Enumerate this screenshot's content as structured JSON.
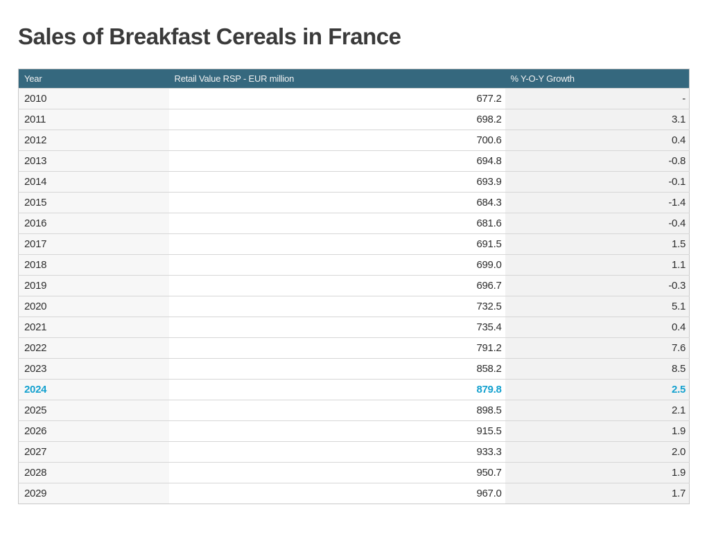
{
  "page": {
    "title": "Sales of Breakfast Cereals in France"
  },
  "chart_data": {
    "type": "table",
    "title": "Sales of Breakfast Cereals in France",
    "columns": [
      "Year",
      "Retail Value RSP - EUR million",
      "% Y-O-Y Growth"
    ],
    "highlight_year": "2024",
    "rows": [
      {
        "year": "2010",
        "value": "677.2",
        "growth": "-",
        "highlight": false
      },
      {
        "year": "2011",
        "value": "698.2",
        "growth": "3.1",
        "highlight": false
      },
      {
        "year": "2012",
        "value": "700.6",
        "growth": "0.4",
        "highlight": false
      },
      {
        "year": "2013",
        "value": "694.8",
        "growth": "-0.8",
        "highlight": false
      },
      {
        "year": "2014",
        "value": "693.9",
        "growth": "-0.1",
        "highlight": false
      },
      {
        "year": "2015",
        "value": "684.3",
        "growth": "-1.4",
        "highlight": false
      },
      {
        "year": "2016",
        "value": "681.6",
        "growth": "-0.4",
        "highlight": false
      },
      {
        "year": "2017",
        "value": "691.5",
        "growth": "1.5",
        "highlight": false
      },
      {
        "year": "2018",
        "value": "699.0",
        "growth": "1.1",
        "highlight": false
      },
      {
        "year": "2019",
        "value": "696.7",
        "growth": "-0.3",
        "highlight": false
      },
      {
        "year": "2020",
        "value": "732.5",
        "growth": "5.1",
        "highlight": false
      },
      {
        "year": "2021",
        "value": "735.4",
        "growth": "0.4",
        "highlight": false
      },
      {
        "year": "2022",
        "value": "791.2",
        "growth": "7.6",
        "highlight": false
      },
      {
        "year": "2023",
        "value": "858.2",
        "growth": "8.5",
        "highlight": false
      },
      {
        "year": "2024",
        "value": "879.8",
        "growth": "2.5",
        "highlight": true
      },
      {
        "year": "2025",
        "value": "898.5",
        "growth": "2.1",
        "highlight": false
      },
      {
        "year": "2026",
        "value": "915.5",
        "growth": "1.9",
        "highlight": false
      },
      {
        "year": "2027",
        "value": "933.3",
        "growth": "2.0",
        "highlight": false
      },
      {
        "year": "2028",
        "value": "950.7",
        "growth": "1.9",
        "highlight": false
      },
      {
        "year": "2029",
        "value": "967.0",
        "growth": "1.7",
        "highlight": false
      }
    ]
  },
  "colors": {
    "header_bg": "#35687e",
    "header_text": "#f2f2f2",
    "highlight": "#14a1cf",
    "row_text": "#2d2d2d",
    "year_col_bg": "#f7f7f7",
    "growth_col_bg": "#f2f2f2",
    "value_col_bg": "#ffffff",
    "border": "#c8c8c8",
    "row_line": "#d6d6d6",
    "title_color": "#3a3a3a"
  }
}
